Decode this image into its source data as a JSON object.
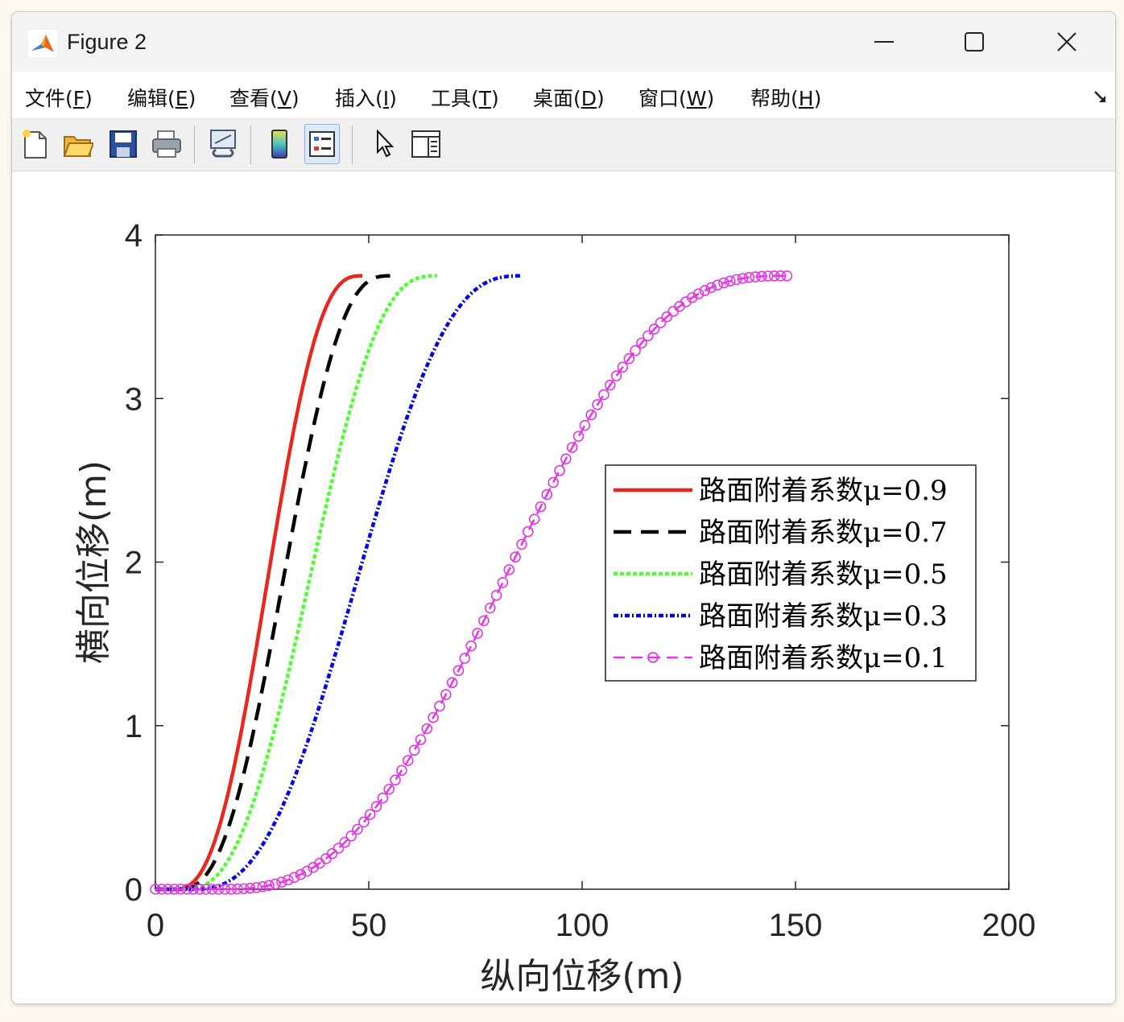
{
  "window": {
    "title": "Figure 2",
    "controls": {
      "minimize": "minimize",
      "maximize": "maximize",
      "close": "close"
    }
  },
  "menu": {
    "items": [
      {
        "label": "文件(",
        "acc": "F",
        "end": ")"
      },
      {
        "label": "编辑(",
        "acc": "E",
        "end": ")"
      },
      {
        "label": "查看(",
        "acc": "V",
        "end": ")"
      },
      {
        "label": "插入(",
        "acc": "I",
        "end": ")"
      },
      {
        "label": "工具(",
        "acc": "T",
        "end": ")"
      },
      {
        "label": "桌面(",
        "acc": "D",
        "end": ")"
      },
      {
        "label": "窗口(",
        "acc": "W",
        "end": ")"
      },
      {
        "label": "帮助(",
        "acc": "H",
        "end": ")"
      }
    ]
  },
  "toolbar": {
    "buttons": [
      "new-figure-icon",
      "open-file-icon",
      "save-icon",
      "print-icon",
      "link-plot-icon",
      "colorbar-icon",
      "legend-icon",
      "pointer-icon",
      "property-inspector-icon"
    ],
    "active": "legend-icon"
  },
  "colors": {
    "mu09": "#e8281e",
    "mu07": "#000000",
    "mu05": "#4dff2e",
    "mu03": "#0000ee",
    "mu01": "#e536e5"
  },
  "chart_data": {
    "type": "line",
    "xlabel": "纵向位移(m)",
    "ylabel": "横向位移(m)",
    "xlim": [
      0,
      200
    ],
    "ylim": [
      0,
      4
    ],
    "xticks": [
      "0",
      "50",
      "100",
      "150",
      "200"
    ],
    "yticks": [
      "0",
      "1",
      "2",
      "3",
      "4"
    ],
    "grid": false,
    "legend_position": "right",
    "series": [
      {
        "name": "路面附着系数μ=0.9",
        "style": "solid",
        "x_start": 0,
        "x_end": 48.5,
        "y_end": 3.75
      },
      {
        "name": "路面附着系数μ=0.7",
        "style": "dashed",
        "x_start": 0,
        "x_end": 55,
        "y_end": 3.75
      },
      {
        "name": "路面附着系数μ=0.5",
        "style": "dotted",
        "x_start": 0,
        "x_end": 66,
        "y_end": 3.75
      },
      {
        "name": "路面附着系数μ=0.3",
        "style": "dashdot",
        "x_start": 0,
        "x_end": 86,
        "y_end": 3.75
      },
      {
        "name": "路面附着系数μ=0.1",
        "style": "dash-circle",
        "x_start": 0,
        "x_end": 148,
        "y_end": 3.75
      }
    ]
  }
}
